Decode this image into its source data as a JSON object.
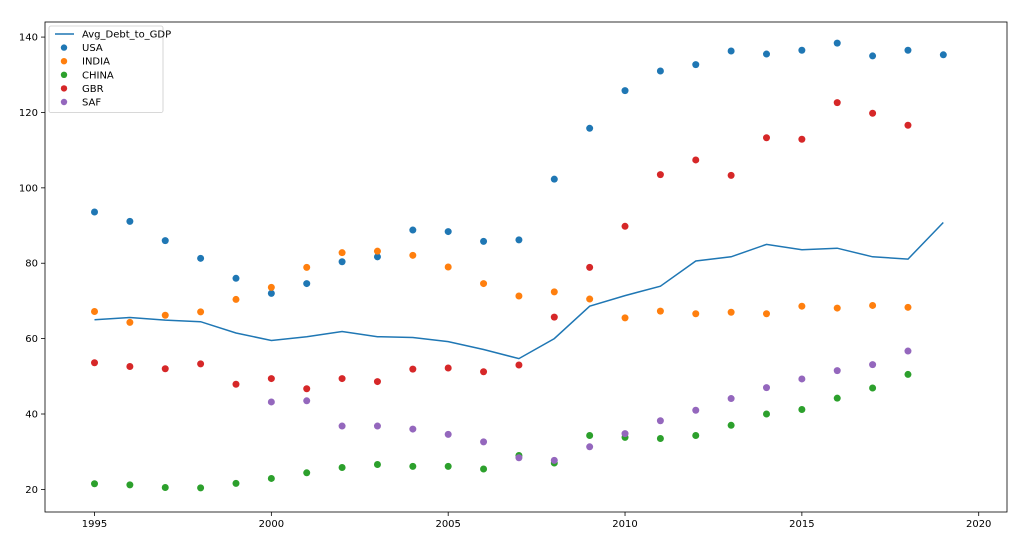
{
  "chart_data": {
    "type": "line+scatter",
    "title": "",
    "xlabel": "",
    "ylabel": "",
    "xlim": [
      1993.6,
      2020.8
    ],
    "ylim": [
      14,
      144
    ],
    "grid": false,
    "legend_position": "top-left",
    "x_ticks": [
      1995,
      2000,
      2005,
      2010,
      2015,
      2020
    ],
    "y_ticks": [
      20,
      40,
      60,
      80,
      100,
      120,
      140
    ],
    "line_series": [
      {
        "name": "Avg_Debt_to_GDP",
        "color": "#1f77b4",
        "x": [
          1995,
          1996,
          1997,
          1998,
          1999,
          2000,
          2001,
          2002,
          2003,
          2004,
          2005,
          2006,
          2007,
          2008,
          2009,
          2010,
          2011,
          2012,
          2013,
          2014,
          2015,
          2016,
          2017,
          2018,
          2019
        ],
        "y": [
          65.0,
          65.6,
          64.9,
          64.5,
          61.5,
          59.5,
          60.5,
          61.9,
          60.5,
          60.3,
          59.2,
          57.1,
          54.7,
          60.0,
          68.6,
          71.4,
          73.9,
          80.6,
          81.7,
          85.0,
          83.6,
          84.0,
          81.7,
          81.1,
          90.8
        ]
      }
    ],
    "scatter_series": [
      {
        "name": "USA",
        "color": "#1f77b4",
        "x": [
          1995,
          1996,
          1997,
          1998,
          1999,
          2000,
          2001,
          2002,
          2003,
          2004,
          2005,
          2006,
          2007,
          2008,
          2009,
          2010,
          2011,
          2012,
          2013,
          2014,
          2015,
          2016,
          2017,
          2018,
          2019
        ],
        "y": [
          93.6,
          91.1,
          86.0,
          81.3,
          76.0,
          72.0,
          74.6,
          80.4,
          81.7,
          88.8,
          88.4,
          85.8,
          86.2,
          102.3,
          115.8,
          125.8,
          131.0,
          132.7,
          136.3,
          135.5,
          136.5,
          138.4,
          135.0,
          136.5,
          135.3
        ]
      },
      {
        "name": "INDIA",
        "color": "#ff7f0e",
        "x": [
          1995,
          1996,
          1997,
          1998,
          1999,
          2000,
          2001,
          2002,
          2003,
          2004,
          2005,
          2006,
          2007,
          2008,
          2009,
          2010,
          2011,
          2012,
          2013,
          2014,
          2015,
          2016,
          2017,
          2018
        ],
        "y": [
          67.2,
          64.3,
          66.2,
          67.1,
          70.4,
          73.6,
          78.9,
          82.8,
          83.2,
          82.1,
          79.0,
          74.6,
          71.3,
          72.4,
          70.5,
          65.5,
          67.3,
          66.6,
          67.0,
          66.6,
          68.6,
          68.1,
          68.8,
          68.3
        ]
      },
      {
        "name": "CHINA",
        "color": "#2ca02c",
        "x": [
          1995,
          1996,
          1997,
          1998,
          1999,
          2000,
          2001,
          2002,
          2003,
          2004,
          2005,
          2006,
          2007,
          2008,
          2009,
          2010,
          2011,
          2012,
          2013,
          2014,
          2015,
          2016,
          2017,
          2018
        ],
        "y": [
          21.5,
          21.2,
          20.5,
          20.4,
          21.6,
          22.9,
          24.4,
          25.8,
          26.6,
          26.1,
          26.1,
          25.4,
          29.0,
          27.0,
          34.3,
          33.8,
          33.5,
          34.3,
          37.0,
          40.0,
          41.2,
          44.2,
          46.9,
          50.5
        ]
      },
      {
        "name": "GBR",
        "color": "#d62728",
        "x": [
          1995,
          1996,
          1997,
          1998,
          1999,
          2000,
          2001,
          2002,
          2003,
          2004,
          2005,
          2006,
          2007,
          2008,
          2009,
          2010,
          2011,
          2012,
          2013,
          2014,
          2015,
          2016,
          2017,
          2018
        ],
        "y": [
          53.6,
          52.6,
          52.0,
          53.3,
          47.9,
          49.4,
          46.7,
          49.4,
          48.6,
          51.9,
          52.2,
          51.2,
          53.0,
          65.7,
          78.9,
          89.8,
          103.5,
          107.4,
          103.3,
          113.3,
          112.9,
          122.6,
          119.8,
          116.6
        ]
      },
      {
        "name": "SAF",
        "color": "#9467bd",
        "x": [
          2000,
          2001,
          2002,
          2003,
          2004,
          2005,
          2006,
          2007,
          2008,
          2009,
          2010,
          2011,
          2012,
          2013,
          2014,
          2015,
          2016,
          2017,
          2018
        ],
        "y": [
          43.2,
          43.5,
          36.8,
          36.8,
          36.0,
          34.6,
          32.6,
          28.4,
          27.7,
          31.3,
          34.8,
          38.2,
          41.0,
          44.1,
          47.0,
          49.3,
          51.5,
          53.1,
          56.7
        ]
      }
    ]
  }
}
